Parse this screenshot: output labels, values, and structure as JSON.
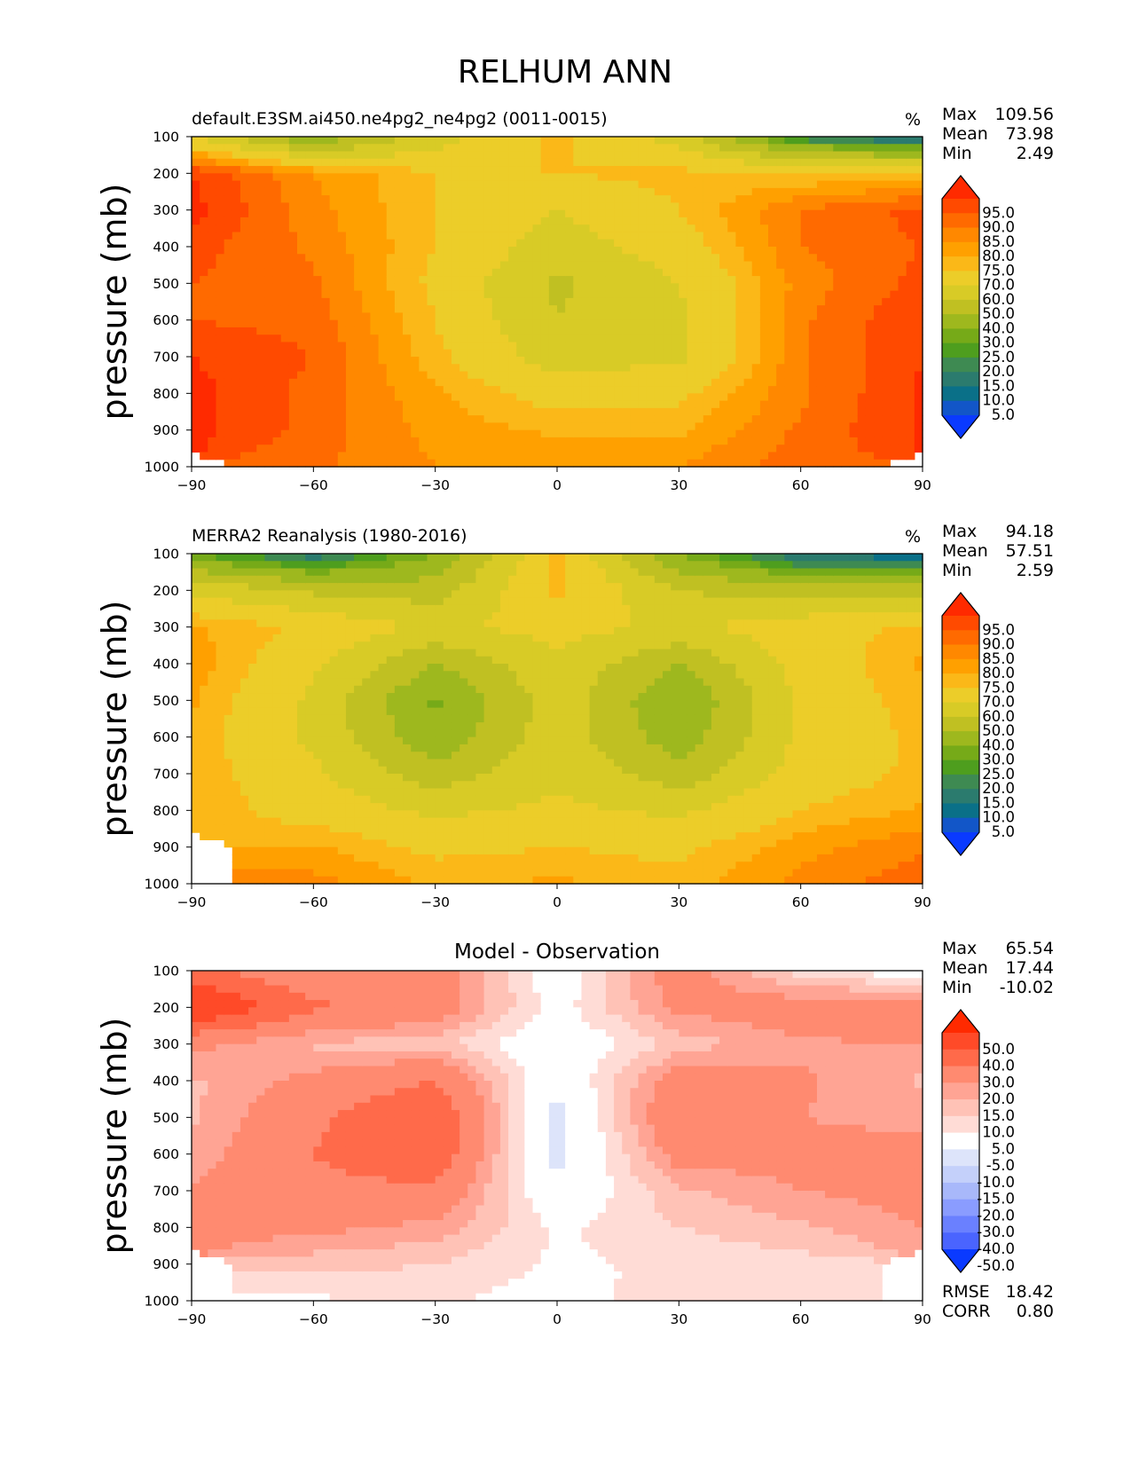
{
  "figure": {
    "title": "RELHUM ANN"
  },
  "chart_data": [
    {
      "type": "heatmap",
      "title": "default.E3SM.ai450.ne4pg2_ne4pg2 (0011-0015)",
      "units": "%",
      "ylabel": "pressure (mb)",
      "xlabel": "",
      "x_ticks": [
        "−90",
        "−60",
        "−30",
        "0",
        "30",
        "60",
        "90"
      ],
      "y_ticks": [
        "100",
        "200",
        "300",
        "400",
        "500",
        "600",
        "700",
        "800",
        "900",
        "1000"
      ],
      "xlim": [
        -90,
        90
      ],
      "ylim": [
        1000,
        100
      ],
      "stats": {
        "max_label": "Max",
        "max": "109.56",
        "mean_label": "Mean",
        "mean": "73.98",
        "min_label": "Min",
        "min": "2.49"
      },
      "colorbar_levels": [
        "95.0",
        "90.0",
        "85.0",
        "80.0",
        "75.0",
        "70.0",
        "60.0",
        "50.0",
        "40.0",
        "30.0",
        "25.0",
        "20.0",
        "15.0",
        "10.0",
        "5.0"
      ],
      "colorbar_colors": [
        "#ff2a00",
        "#ff4a00",
        "#ff6a00",
        "#ff8800",
        "#ffa000",
        "#fbb818",
        "#eccd29",
        "#d8cb26",
        "#c0c022",
        "#9eb81e",
        "#76aa18",
        "#4e9e1e",
        "#3e8a52",
        "#2b7b6e",
        "#0a7088",
        "#1256c8",
        "#0a3aff"
      ],
      "field": {
        "x": [
          -90,
          -60,
          -30,
          0,
          30,
          60,
          90
        ],
        "y": [
          100,
          200,
          300,
          400,
          500,
          600,
          700,
          800,
          900,
          1000
        ],
        "z": [
          [
            60,
            30,
            55,
            72,
            55,
            15,
            5
          ],
          [
            95,
            80,
            70,
            70,
            72,
            70,
            72
          ],
          [
            97,
            82,
            70,
            60,
            70,
            85,
            92
          ],
          [
            92,
            84,
            70,
            55,
            65,
            85,
            90
          ],
          [
            90,
            86,
            68,
            48,
            60,
            82,
            92
          ],
          [
            90,
            88,
            70,
            50,
            58,
            84,
            95
          ],
          [
            95,
            90,
            72,
            55,
            58,
            84,
            95
          ],
          [
            97,
            88,
            76,
            66,
            68,
            84,
            96
          ],
          [
            97,
            88,
            78,
            74,
            74,
            86,
            96
          ],
          [
            null,
            86,
            80,
            78,
            80,
            88,
            null
          ]
        ]
      }
    },
    {
      "type": "heatmap",
      "title": "MERRA2 Reanalysis (1980-2016)",
      "units": "%",
      "ylabel": "pressure (mb)",
      "xlabel": "",
      "x_ticks": [
        "−90",
        "−60",
        "−30",
        "0",
        "30",
        "60",
        "90"
      ],
      "y_ticks": [
        "100",
        "200",
        "300",
        "400",
        "500",
        "600",
        "700",
        "800",
        "900",
        "1000"
      ],
      "xlim": [
        -90,
        90
      ],
      "ylim": [
        1000,
        100
      ],
      "stats": {
        "max_label": "Max",
        "max": "94.18",
        "mean_label": "Mean",
        "mean": "57.51",
        "min_label": "Min",
        "min": "2.59"
      },
      "colorbar_levels": [
        "95.0",
        "90.0",
        "85.0",
        "80.0",
        "75.0",
        "70.0",
        "60.0",
        "50.0",
        "40.0",
        "30.0",
        "25.0",
        "20.0",
        "15.0",
        "10.0",
        "5.0"
      ],
      "colorbar_colors": [
        "#ff2a00",
        "#ff4a00",
        "#ff6a00",
        "#ff8800",
        "#ffa000",
        "#fbb818",
        "#eccd29",
        "#d8cb26",
        "#c0c022",
        "#9eb81e",
        "#76aa18",
        "#4e9e1e",
        "#3e8a52",
        "#2b7b6e",
        "#0a7088",
        "#1256c8",
        "#0a3aff"
      ],
      "field": {
        "x": [
          -90,
          -60,
          -30,
          0,
          30,
          60,
          90
        ],
        "y": [
          100,
          200,
          300,
          400,
          500,
          600,
          700,
          800,
          900,
          1000
        ],
        "z": [
          [
            25,
            10,
            30,
            72,
            30,
            8,
            5
          ],
          [
            58,
            48,
            45,
            72,
            50,
            45,
            45
          ],
          [
            76,
            68,
            58,
            64,
            58,
            66,
            72
          ],
          [
            78,
            62,
            40,
            58,
            40,
            64,
            76
          ],
          [
            76,
            58,
            28,
            56,
            30,
            62,
            74
          ],
          [
            74,
            58,
            32,
            56,
            34,
            62,
            72
          ],
          [
            74,
            62,
            44,
            58,
            44,
            64,
            72
          ],
          [
            74,
            66,
            58,
            62,
            58,
            70,
            76
          ],
          [
            null,
            76,
            68,
            70,
            68,
            78,
            84
          ],
          [
            null,
            82,
            74,
            76,
            72,
            82,
            88
          ]
        ]
      }
    },
    {
      "type": "heatmap",
      "title": "Model - Observation",
      "units": "",
      "ylabel": "pressure (mb)",
      "xlabel": "",
      "x_ticks": [
        "−90",
        "−60",
        "−30",
        "0",
        "30",
        "60",
        "90"
      ],
      "y_ticks": [
        "100",
        "200",
        "300",
        "400",
        "500",
        "600",
        "700",
        "800",
        "900",
        "1000"
      ],
      "xlim": [
        -90,
        90
      ],
      "ylim": [
        1000,
        100
      ],
      "stats": {
        "max_label": "Max",
        "max": "65.54",
        "mean_label": "Mean",
        "mean": "17.44",
        "min_label": "Min",
        "min": "-10.02"
      },
      "error_stats": {
        "rmse_label": "RMSE",
        "rmse": "18.42",
        "corr_label": "CORR",
        "corr": "0.80"
      },
      "colorbar_levels": [
        "50.0",
        "40.0",
        "30.0",
        "20.0",
        "15.0",
        "10.0",
        "5.0",
        "-5.0",
        "-10.0",
        "-15.0",
        "-20.0",
        "-30.0",
        "-40.0",
        "-50.0"
      ],
      "colorbar_colors": [
        "#ff2a00",
        "#ff4a28",
        "#ff6a4a",
        "#ff8a70",
        "#ffa494",
        "#ffc2b6",
        "#ffdcd6",
        "#ffffff",
        "#dde4fa",
        "#c4d0fa",
        "#a8b8fa",
        "#8a9cff",
        "#6a80ff",
        "#4a64ff",
        "#0a3aff"
      ],
      "field": {
        "x": [
          -90,
          -60,
          -30,
          0,
          30,
          60,
          90
        ],
        "y": [
          100,
          200,
          300,
          400,
          500,
          600,
          700,
          800,
          900,
          1000
        ],
        "z": [
          [
            35,
            20,
            25,
            0,
            25,
            7,
            0
          ],
          [
            52,
            32,
            25,
            2,
            22,
            25,
            27
          ],
          [
            22,
            14,
            12,
            -2,
            12,
            19,
            20
          ],
          [
            14,
            22,
            30,
            -3,
            25,
            21,
            14
          ],
          [
            14,
            28,
            40,
            -8,
            30,
            20,
            18
          ],
          [
            16,
            30,
            38,
            -8,
            24,
            22,
            23
          ],
          [
            21,
            28,
            28,
            -3,
            14,
            20,
            23
          ],
          [
            23,
            22,
            18,
            4,
            10,
            14,
            20
          ],
          [
            null,
            12,
            10,
            4,
            6,
            8,
            null
          ],
          [
            null,
            4,
            6,
            2,
            8,
            6,
            null
          ]
        ]
      }
    }
  ]
}
